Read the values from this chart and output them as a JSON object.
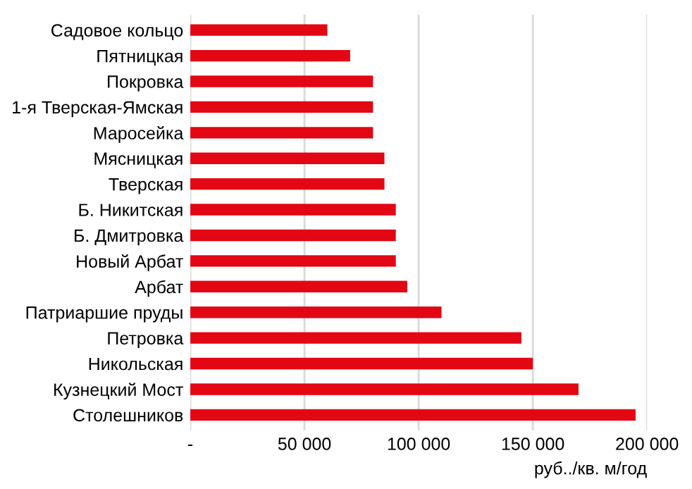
{
  "chart_data": {
    "type": "bar",
    "orientation": "horizontal",
    "xlabel": "руб../кв. м/год",
    "categories": [
      "Садовое кольцо",
      "Пятницкая",
      "Покровка",
      "1-я Тверская-Ямская",
      "Маросейка",
      "Мясницкая",
      "Тверская",
      "Б. Никитская",
      "Б. Дмитровка",
      "Новый Арбат",
      "Арбат",
      "Патриаршие пруды",
      "Петровка",
      "Никольская",
      "Кузнецкий Мост",
      "Столешников"
    ],
    "values": [
      60000,
      70000,
      80000,
      80000,
      80000,
      85000,
      85000,
      90000,
      90000,
      90000,
      95000,
      110000,
      145000,
      150000,
      170000,
      195000
    ],
    "color": "#e30613",
    "xlim": [
      0,
      200000
    ],
    "xticks": [
      {
        "value": 0,
        "label": "-"
      },
      {
        "value": 50000,
        "label": "50 000"
      },
      {
        "value": 100000,
        "label": "100 000"
      },
      {
        "value": 150000,
        "label": "150 000"
      },
      {
        "value": 200000,
        "label": "200 000"
      }
    ],
    "grid": "x",
    "legend": false
  }
}
